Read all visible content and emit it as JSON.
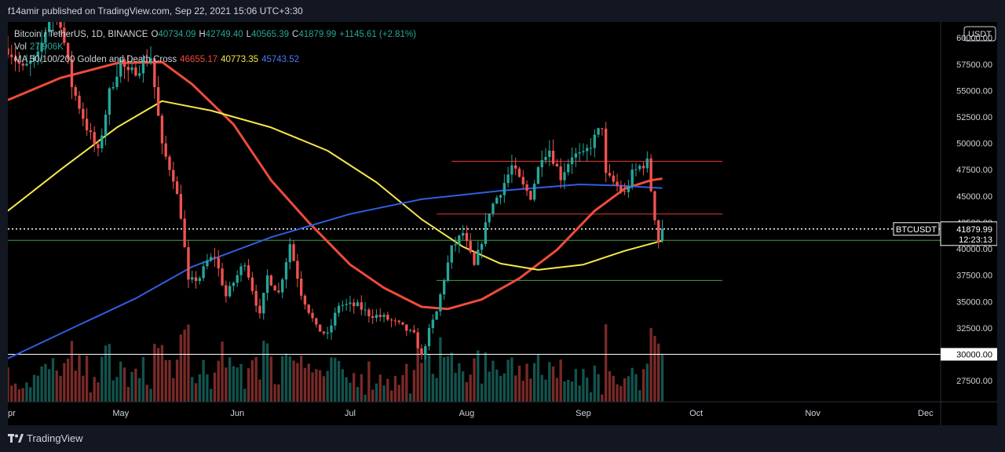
{
  "header": {
    "published": "f14amir published on TradingView.com, Sep 22, 2021 15:06 UTC+3:30"
  },
  "legend": {
    "symbol": "Bitcoin / TetherUS, 1D, BINANCE",
    "o_label": "O",
    "o_value": "40734.09",
    "h_label": "H",
    "h_value": "42749.40",
    "l_label": "L",
    "l_value": "40565.39",
    "c_label": "C",
    "c_value": "41879.99",
    "change": "+1145.61 (+2.81%)",
    "vol_label": "Vol",
    "vol_value": "27.906K",
    "ma_label": "MA 50/100/200 Golden and Death Cross",
    "ma50_value": "46655.17",
    "ma100_value": "40773.35",
    "ma200_value": "45743.52"
  },
  "colors": {
    "up": "#26a69a",
    "down": "#ef5350",
    "ma50": "#f04b3a",
    "ma100": "#f5e84a",
    "ma200": "#2f5fe0",
    "background": "#000000",
    "resistance": "#e53935",
    "support": "#43a047"
  },
  "price_axis": {
    "currency": "USDT",
    "ticks": [
      "60000.00",
      "57500.00",
      "55000.00",
      "52500.00",
      "50000.00",
      "47500.00",
      "45000.00",
      "42500.00",
      "40000.00",
      "37500.00",
      "35000.00",
      "32500.00",
      "30000.00",
      "27500.00"
    ],
    "tick_values": [
      60000,
      57500,
      55000,
      52500,
      50000,
      47500,
      45000,
      42500,
      40000,
      37500,
      35000,
      32500,
      30000,
      27500
    ],
    "last_price_label": "41879.99",
    "countdown": "12:23:13",
    "symbol_tag": "BTCUSDT",
    "highlight_label": "30000.00"
  },
  "time_axis": {
    "labels": [
      "pr",
      "May",
      "Jun",
      "Jul",
      "Aug",
      "Sep",
      "Oct",
      "Nov",
      "Dec"
    ]
  },
  "footer": {
    "brand": "TradingView"
  },
  "chart_data": {
    "type": "candlestick",
    "symbol": "BTCUSDT",
    "ylim": [
      25500,
      61500
    ],
    "x_range": [
      "2021-04-01",
      "2021-12-05"
    ],
    "horizontal_lines": [
      {
        "price": 48300,
        "start": "2021-07-28",
        "end": "2021-10-08",
        "color": "#e53935"
      },
      {
        "price": 43300,
        "start": "2021-07-24",
        "end": "2021-10-08",
        "color": "#e53935"
      },
      {
        "price": 40800,
        "start": "2021-04-01",
        "end": "2021-12-05",
        "color": "#43a047"
      },
      {
        "price": 37000,
        "start": "2021-07-24",
        "end": "2021-10-08",
        "color": "#43a047"
      },
      {
        "price": 30000,
        "start": "2021-04-01",
        "end": "2021-12-05",
        "color": "#ffffff"
      },
      {
        "price": 41880,
        "start": "2021-04-01",
        "end": "2021-12-05",
        "color": "#ffffff",
        "style": "dotted"
      }
    ],
    "keypoints": [
      [
        "2021-04-01",
        59000
      ],
      [
        "2021-04-05",
        57000
      ],
      [
        "2021-04-09",
        58200
      ],
      [
        "2021-04-13",
        63200
      ],
      [
        "2021-04-15",
        61500
      ],
      [
        "2021-04-18",
        55500
      ],
      [
        "2021-04-22",
        51500
      ],
      [
        "2021-04-25",
        49100
      ],
      [
        "2021-04-28",
        54800
      ],
      [
        "2021-05-01",
        57800
      ],
      [
        "2021-05-03",
        56500
      ],
      [
        "2021-05-06",
        57200
      ],
      [
        "2021-05-09",
        58200
      ],
      [
        "2021-05-12",
        49600
      ],
      [
        "2021-05-15",
        46800
      ],
      [
        "2021-05-17",
        43200
      ],
      [
        "2021-05-19",
        36800
      ],
      [
        "2021-05-22",
        37300
      ],
      [
        "2021-05-24",
        38800
      ],
      [
        "2021-05-26",
        39300
      ],
      [
        "2021-05-29",
        35500
      ],
      [
        "2021-06-03",
        38800
      ],
      [
        "2021-06-07",
        33600
      ],
      [
        "2021-06-09",
        37400
      ],
      [
        "2021-06-12",
        35800
      ],
      [
        "2021-06-15",
        40500
      ],
      [
        "2021-06-18",
        35800
      ],
      [
        "2021-06-22",
        32500
      ],
      [
        "2021-06-25",
        31800
      ],
      [
        "2021-06-28",
        34700
      ],
      [
        "2021-07-03",
        34600
      ],
      [
        "2021-07-06",
        33800
      ],
      [
        "2021-07-10",
        33500
      ],
      [
        "2021-07-14",
        32800
      ],
      [
        "2021-07-18",
        31800
      ],
      [
        "2021-07-20",
        29800
      ],
      [
        "2021-07-22",
        32200
      ],
      [
        "2021-07-24",
        34000
      ],
      [
        "2021-07-26",
        37200
      ],
      [
        "2021-07-28",
        40000
      ],
      [
        "2021-07-31",
        41500
      ],
      [
        "2021-08-03",
        38300
      ],
      [
        "2021-08-05",
        40800
      ],
      [
        "2021-08-07",
        43600
      ],
      [
        "2021-08-10",
        45500
      ],
      [
        "2021-08-13",
        47800
      ],
      [
        "2021-08-16",
        45900
      ],
      [
        "2021-08-18",
        45000
      ],
      [
        "2021-08-21",
        48900
      ],
      [
        "2021-08-23",
        49400
      ],
      [
        "2021-08-26",
        46800
      ],
      [
        "2021-08-29",
        48900
      ],
      [
        "2021-09-01",
        48800
      ],
      [
        "2021-09-03",
        49900
      ],
      [
        "2021-09-06",
        51700
      ],
      [
        "2021-09-07",
        46900
      ],
      [
        "2021-09-09",
        46300
      ],
      [
        "2021-09-12",
        45200
      ],
      [
        "2021-09-14",
        47100
      ],
      [
        "2021-09-16",
        47800
      ],
      [
        "2021-09-18",
        48200
      ],
      [
        "2021-09-20",
        43000
      ],
      [
        "2021-09-21",
        40700
      ],
      [
        "2021-09-22",
        41880
      ]
    ],
    "ma50": [
      [
        "2021-04-01",
        54100
      ],
      [
        "2021-04-15",
        56200
      ],
      [
        "2021-04-30",
        57600
      ],
      [
        "2021-05-12",
        57700
      ],
      [
        "2021-05-20",
        55600
      ],
      [
        "2021-05-31",
        51800
      ],
      [
        "2021-06-10",
        46500
      ],
      [
        "2021-06-20",
        42500
      ],
      [
        "2021-07-01",
        38500
      ],
      [
        "2021-07-10",
        36300
      ],
      [
        "2021-07-20",
        34500
      ],
      [
        "2021-07-27",
        34300
      ],
      [
        "2021-08-05",
        35200
      ],
      [
        "2021-08-15",
        37200
      ],
      [
        "2021-08-25",
        39900
      ],
      [
        "2021-09-04",
        43600
      ],
      [
        "2021-09-12",
        45700
      ],
      [
        "2021-09-19",
        46500
      ],
      [
        "2021-09-22",
        46655
      ]
    ],
    "ma100": [
      [
        "2021-04-01",
        43600
      ],
      [
        "2021-04-15",
        47500
      ],
      [
        "2021-04-30",
        51500
      ],
      [
        "2021-05-12",
        54000
      ],
      [
        "2021-05-25",
        53100
      ],
      [
        "2021-06-10",
        51500
      ],
      [
        "2021-06-25",
        49300
      ],
      [
        "2021-07-08",
        46300
      ],
      [
        "2021-07-20",
        42800
      ],
      [
        "2021-07-31",
        40200
      ],
      [
        "2021-08-10",
        38600
      ],
      [
        "2021-08-20",
        38000
      ],
      [
        "2021-09-01",
        38500
      ],
      [
        "2021-09-12",
        39800
      ],
      [
        "2021-09-22",
        40773
      ]
    ],
    "ma200": [
      [
        "2021-04-01",
        29600
      ],
      [
        "2021-04-20",
        32800
      ],
      [
        "2021-05-05",
        35300
      ],
      [
        "2021-05-20",
        38300
      ],
      [
        "2021-06-10",
        41100
      ],
      [
        "2021-07-01",
        43300
      ],
      [
        "2021-07-20",
        44700
      ],
      [
        "2021-08-10",
        45500
      ],
      [
        "2021-08-31",
        46100
      ],
      [
        "2021-09-10",
        46000
      ],
      [
        "2021-09-22",
        45743
      ]
    ],
    "volume_note": "Volume histogram along the bottom, colored by candle direction"
  }
}
